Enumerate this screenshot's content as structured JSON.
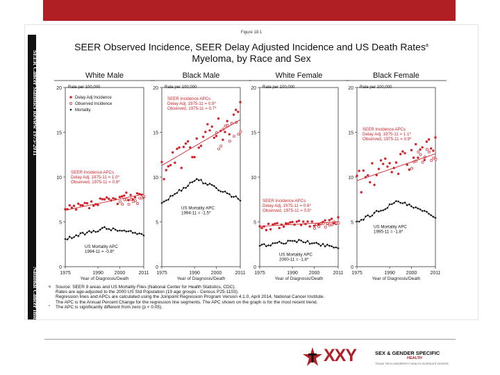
{
  "slide": {
    "figure_number": "Figure 18.1",
    "title_line1": "SEER Observed Incidence, SEER Delay Adjusted Incidence and US Death Rates",
    "title_sup": "a",
    "title_line2": "Myeloma, by Race and Sex",
    "side_text_top": "SEER Cancer Statistics Review 1975-2011",
    "side_text_bottom": "National Cancer Institute",
    "footnotes": [
      {
        "marker": "a",
        "text": "Source: SEER 9 areas and US Mortality Files (National Center for Health Statistics, CDC)."
      },
      {
        "marker": "",
        "text": "Rates are age-adjusted to the 2000 US Std Population (19 age groups - Census P25-1103)."
      },
      {
        "marker": "",
        "text": "Regression lines and APCs are calculated using the Joinpoint Regression Program Version 4.1.0, April 2014, National Cancer Institute."
      },
      {
        "marker": "",
        "text": "The APC is the Annual Percent Change for the regression line segments. The APC shown on the graph is for the most recent trend."
      },
      {
        "marker": "*",
        "text": "The APC is significantly different from zero (p < 0.05)."
      }
    ]
  },
  "footer": {
    "logo_text": "XXY",
    "org_line1": "SEX & GENDER SPECIFIC",
    "org_line2": "HEALTH",
    "org_line3": "TEXAS TECH UNIVERSITY HEALTH SCIENCES CENTER"
  },
  "colors": {
    "accent": "#b01f24",
    "incidence": "#d2232a",
    "mortality": "#111111"
  },
  "chart_common": {
    "ylabel": "Rate per 100,000",
    "xlabel": "Year of Diagnosis/Death",
    "x_ticks": [
      "1975",
      "1990",
      "2000",
      "2011"
    ],
    "y_ticks": [
      "0",
      "5",
      "10",
      "15",
      "20"
    ],
    "ylim": [
      0,
      20
    ],
    "xlim": [
      1975,
      2011
    ],
    "legend": [
      "Delay Adj Incidence",
      "Observed Incidence",
      "Mortality"
    ]
  },
  "chart_data": [
    {
      "type": "scatter",
      "title": "White Male",
      "delay_adj_incidence": {
        "start": 6.2,
        "end": 8.2,
        "noise": 0.55
      },
      "observed_incidence": {
        "start": 6.2,
        "end": 7.8
      },
      "mortality": {
        "start": 3.1,
        "peak": 4.3,
        "peak_year": 1993,
        "end": 3.6
      },
      "incidence_regression": [
        6.3,
        8.1
      ],
      "incidence_apc": [
        "SEER Incidence APCs",
        "Delay Adj, 1975-11 = 1.0*",
        "Observed, 1975-11 = 0.8*"
      ],
      "mortality_apc": [
        "US Mortality APC",
        "1994-11 = -0.8*"
      ]
    },
    {
      "type": "scatter",
      "title": "Black Male",
      "delay_adj_incidence": {
        "start": 11.0,
        "end": 16.8,
        "noise": 1.6
      },
      "observed_incidence": {
        "start": 11.0,
        "end": 15.8
      },
      "mortality": {
        "start": 7.1,
        "peak": 9.8,
        "peak_year": 1991,
        "end": 7.5
      },
      "incidence_regression": [
        11.3,
        16.4
      ],
      "incidence_apc": [
        "SEER Incidence APCs",
        "Delay Adj, 1975-11 = 0.9*",
        "Observed, 1975-11 = 0.7*"
      ],
      "mortality_apc": [
        "US Mortality APC",
        "1994-11 = -1.5*"
      ]
    },
    {
      "type": "scatter",
      "title": "White Female",
      "delay_adj_incidence": {
        "start": 4.3,
        "end": 5.2,
        "noise": 0.4
      },
      "observed_incidence": {
        "start": 4.3,
        "end": 5.0
      },
      "mortality": {
        "start": 2.3,
        "peak": 2.9,
        "peak_year": 1992,
        "end": 2.2
      },
      "incidence_regression": [
        4.5,
        5.0
      ],
      "incidence_apc": [
        "SEER Incidence APCs",
        "Delay Adj, 1975-11 = 0.6*",
        "Observed, 1975-11 = 0.5*"
      ],
      "mortality_apc": [
        "US Mortality APC",
        "2000-11 = -1.8*"
      ]
    },
    {
      "type": "scatter",
      "title": "Black Female",
      "delay_adj_incidence": {
        "start": 9.4,
        "end": 13.6,
        "noise": 1.4
      },
      "observed_incidence": {
        "start": 9.4,
        "end": 13.0
      },
      "mortality": {
        "start": 5.0,
        "peak": 7.3,
        "peak_year": 1994,
        "end": 5.6
      },
      "incidence_regression": [
        9.6,
        12.6
      ],
      "incidence_apc": [
        "SEER Incidence APCs",
        "Delay Adj, 1975-11 = 1.1*",
        "Observed, 1975-11 = 0.9*"
      ],
      "mortality_apc": [
        "US Mortality APC",
        "1995-11 = -1.8*"
      ]
    }
  ]
}
